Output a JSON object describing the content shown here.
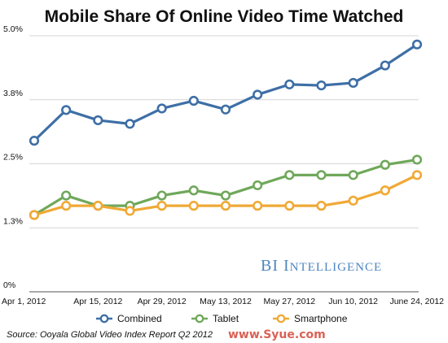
{
  "chart_data": {
    "type": "line",
    "title": "Mobile Share Of Online Video Time Watched",
    "xlabel": "",
    "ylabel": "",
    "ylim": [
      0,
      5.0
    ],
    "y_ticks": [
      "0%",
      "1.3%",
      "2.5%",
      "3.8%",
      "5.0%"
    ],
    "y_tick_values": [
      0,
      1.25,
      2.5,
      3.75,
      5.0
    ],
    "x_ticks": [
      "Apr 1, 2012",
      "Apr 15, 2012",
      "Apr 29, 2012",
      "May 13, 2012",
      "May 27, 2012",
      "Jun 10, 2012",
      "June 24, 2012"
    ],
    "x": [
      "Apr 1, 2012",
      "Apr 8, 2012",
      "Apr 15, 2012",
      "Apr 22, 2012",
      "Apr 29, 2012",
      "May 6, 2012",
      "May 13, 2012",
      "May 20, 2012",
      "May 27, 2012",
      "Jun 3, 2012",
      "Jun 10, 2012",
      "Jun 17, 2012",
      "June 24, 2012"
    ],
    "grid": true,
    "legend_position": "bottom",
    "series": [
      {
        "name": "Combined",
        "color": "#3e6fa6",
        "values": [
          2.95,
          3.55,
          3.35,
          3.28,
          3.58,
          3.73,
          3.56,
          3.85,
          4.05,
          4.03,
          4.08,
          4.42,
          4.83
        ]
      },
      {
        "name": "Tablet",
        "color": "#6fa85a",
        "values": [
          1.5,
          1.88,
          1.68,
          1.68,
          1.88,
          1.98,
          1.88,
          2.08,
          2.28,
          2.28,
          2.28,
          2.48,
          2.58
        ]
      },
      {
        "name": "Smartphone",
        "color": "#f0a935",
        "values": [
          1.5,
          1.68,
          1.68,
          1.58,
          1.68,
          1.68,
          1.68,
          1.68,
          1.68,
          1.68,
          1.78,
          1.98,
          2.28
        ]
      }
    ]
  },
  "source": "Source: Ooyala Global Video Index Report Q2 2012",
  "brand": {
    "first_big": "BI ",
    "first_small": "I",
    "rest": "NTELLIGENCE"
  },
  "watermark": "www.Syue.com"
}
